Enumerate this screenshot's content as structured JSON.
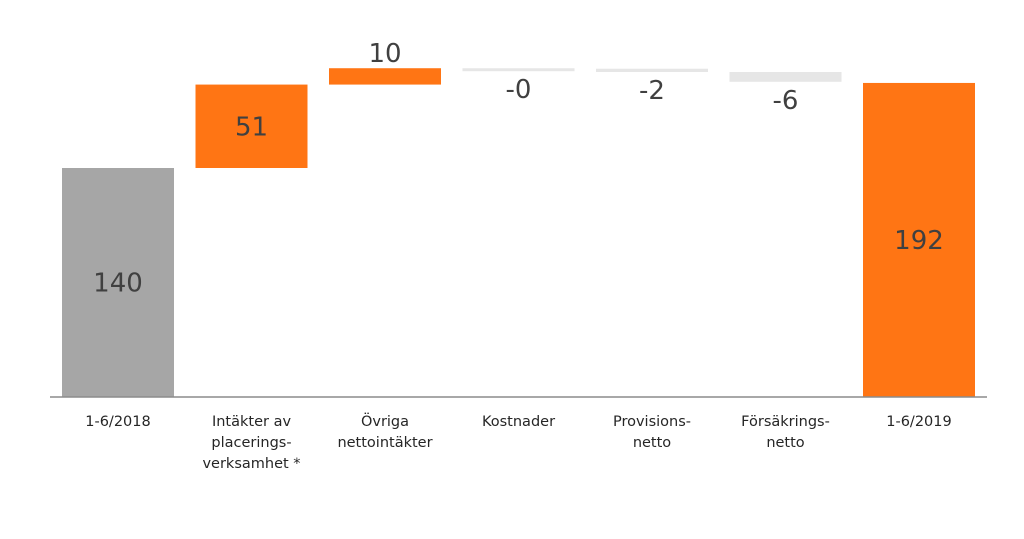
{
  "chart_data": {
    "type": "bar",
    "subtype": "waterfall",
    "title": "",
    "xlabel": "",
    "ylabel": "",
    "ylim": [
      0,
      205
    ],
    "grid": false,
    "legend": "none",
    "categories": [
      "1-6/2018",
      "Intäkter av placerings-verksamhet *",
      "Övriga nettointäkter",
      "Kostnader",
      "Provisions-netto",
      "Försäkrings-netto",
      "1-6/2019"
    ],
    "category_lines": [
      [
        "1-6/2018"
      ],
      [
        "Intäkter av",
        "placerings-",
        "verksamhet *"
      ],
      [
        "Övriga",
        "nettointäkter"
      ],
      [
        "Kostnader"
      ],
      [
        "Provisions-",
        "netto"
      ],
      [
        "Försäkrings-",
        "netto"
      ],
      [
        "1-6/2019"
      ]
    ],
    "values": [
      140,
      51,
      10,
      -0.3,
      -2,
      -6,
      192
    ],
    "value_labels": [
      "140",
      "51",
      "10",
      "-0",
      "-2",
      "-6",
      "192"
    ],
    "bar_kinds": [
      "total",
      "delta",
      "delta",
      "delta",
      "delta",
      "delta",
      "total"
    ],
    "colors": {
      "start_total": "#a6a6a6",
      "end_total": "#ff7514",
      "increase": "#ff7514",
      "decrease": "#e6e6e6",
      "axis": "#8c8c8c",
      "value_text": "#404040",
      "category_text": "#262626"
    }
  }
}
